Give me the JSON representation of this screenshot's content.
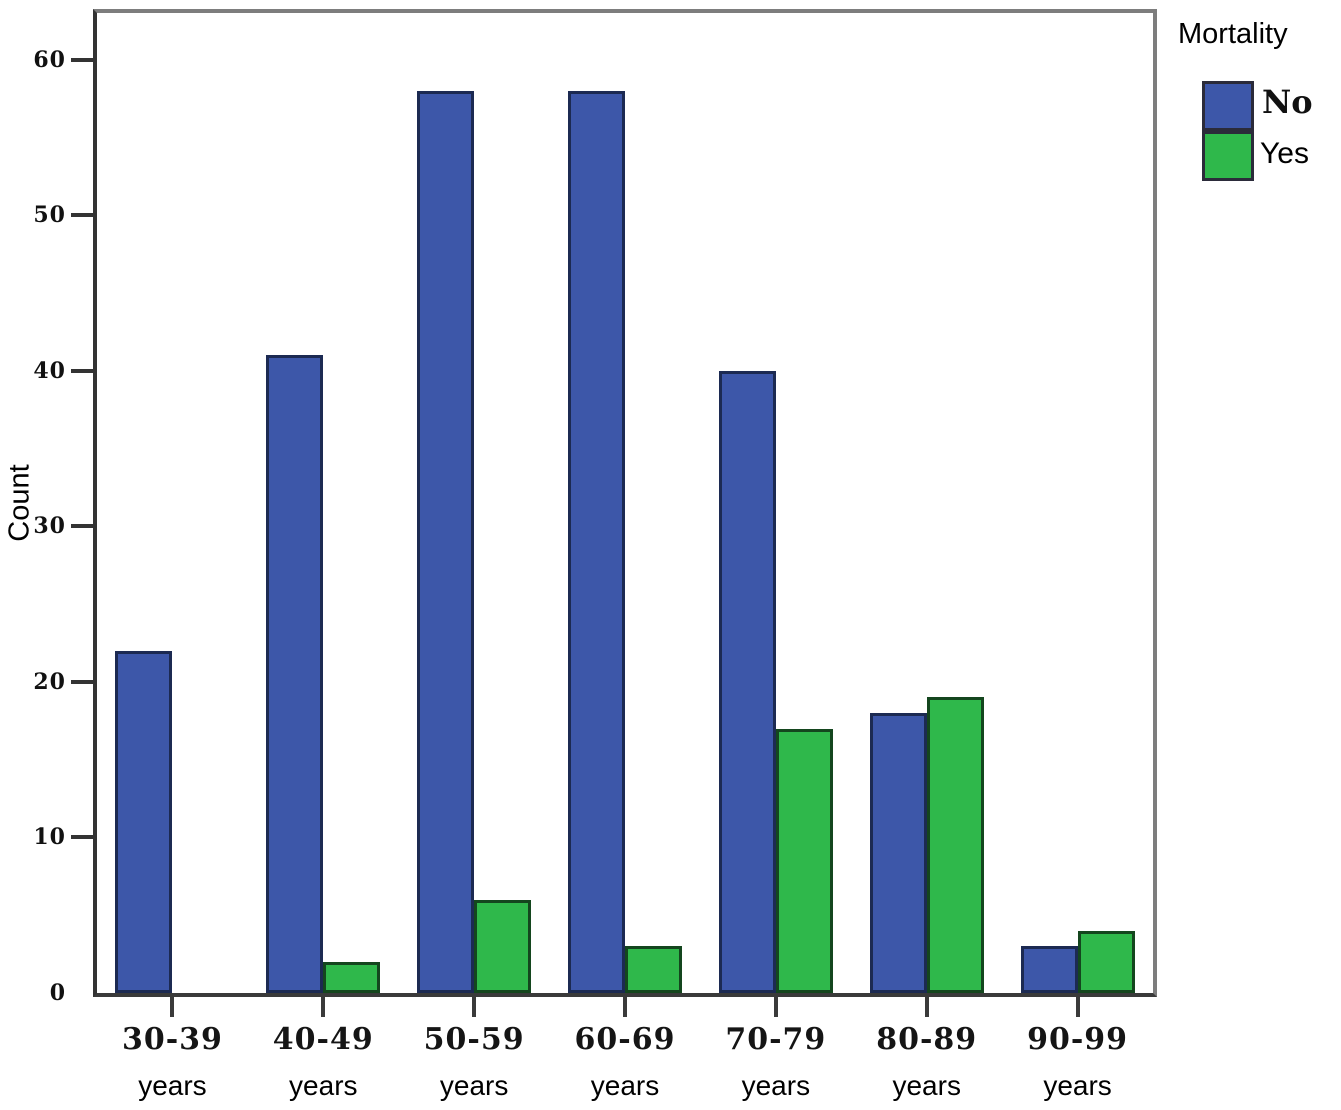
{
  "chart_data": {
    "type": "bar",
    "title": "",
    "xlabel": "",
    "ylabel": "Count",
    "categories": [
      "30-39",
      "40-49",
      "50-59",
      "60-69",
      "70-79",
      "80-89",
      "90-99"
    ],
    "category_sublabel": "years",
    "series": [
      {
        "name": "No",
        "color": "#3D57A9",
        "border_color": "#1C2A52",
        "values": [
          22,
          41,
          58,
          58,
          40,
          18,
          3
        ]
      },
      {
        "name": "Yes",
        "color": "#2FB84B",
        "border_color": "#14461E",
        "values": [
          0,
          2,
          6,
          3,
          17,
          19,
          4
        ]
      }
    ],
    "ylim": [
      0,
      63
    ],
    "yticks": [
      0,
      10,
      20,
      30,
      40,
      50,
      60
    ],
    "grid": false,
    "legend_title": "Mortality",
    "legend_position": "top-right"
  },
  "colors": {
    "axis_dark": "#333333",
    "frame_gray": "#7d7d7d",
    "background": "#ffffff"
  }
}
